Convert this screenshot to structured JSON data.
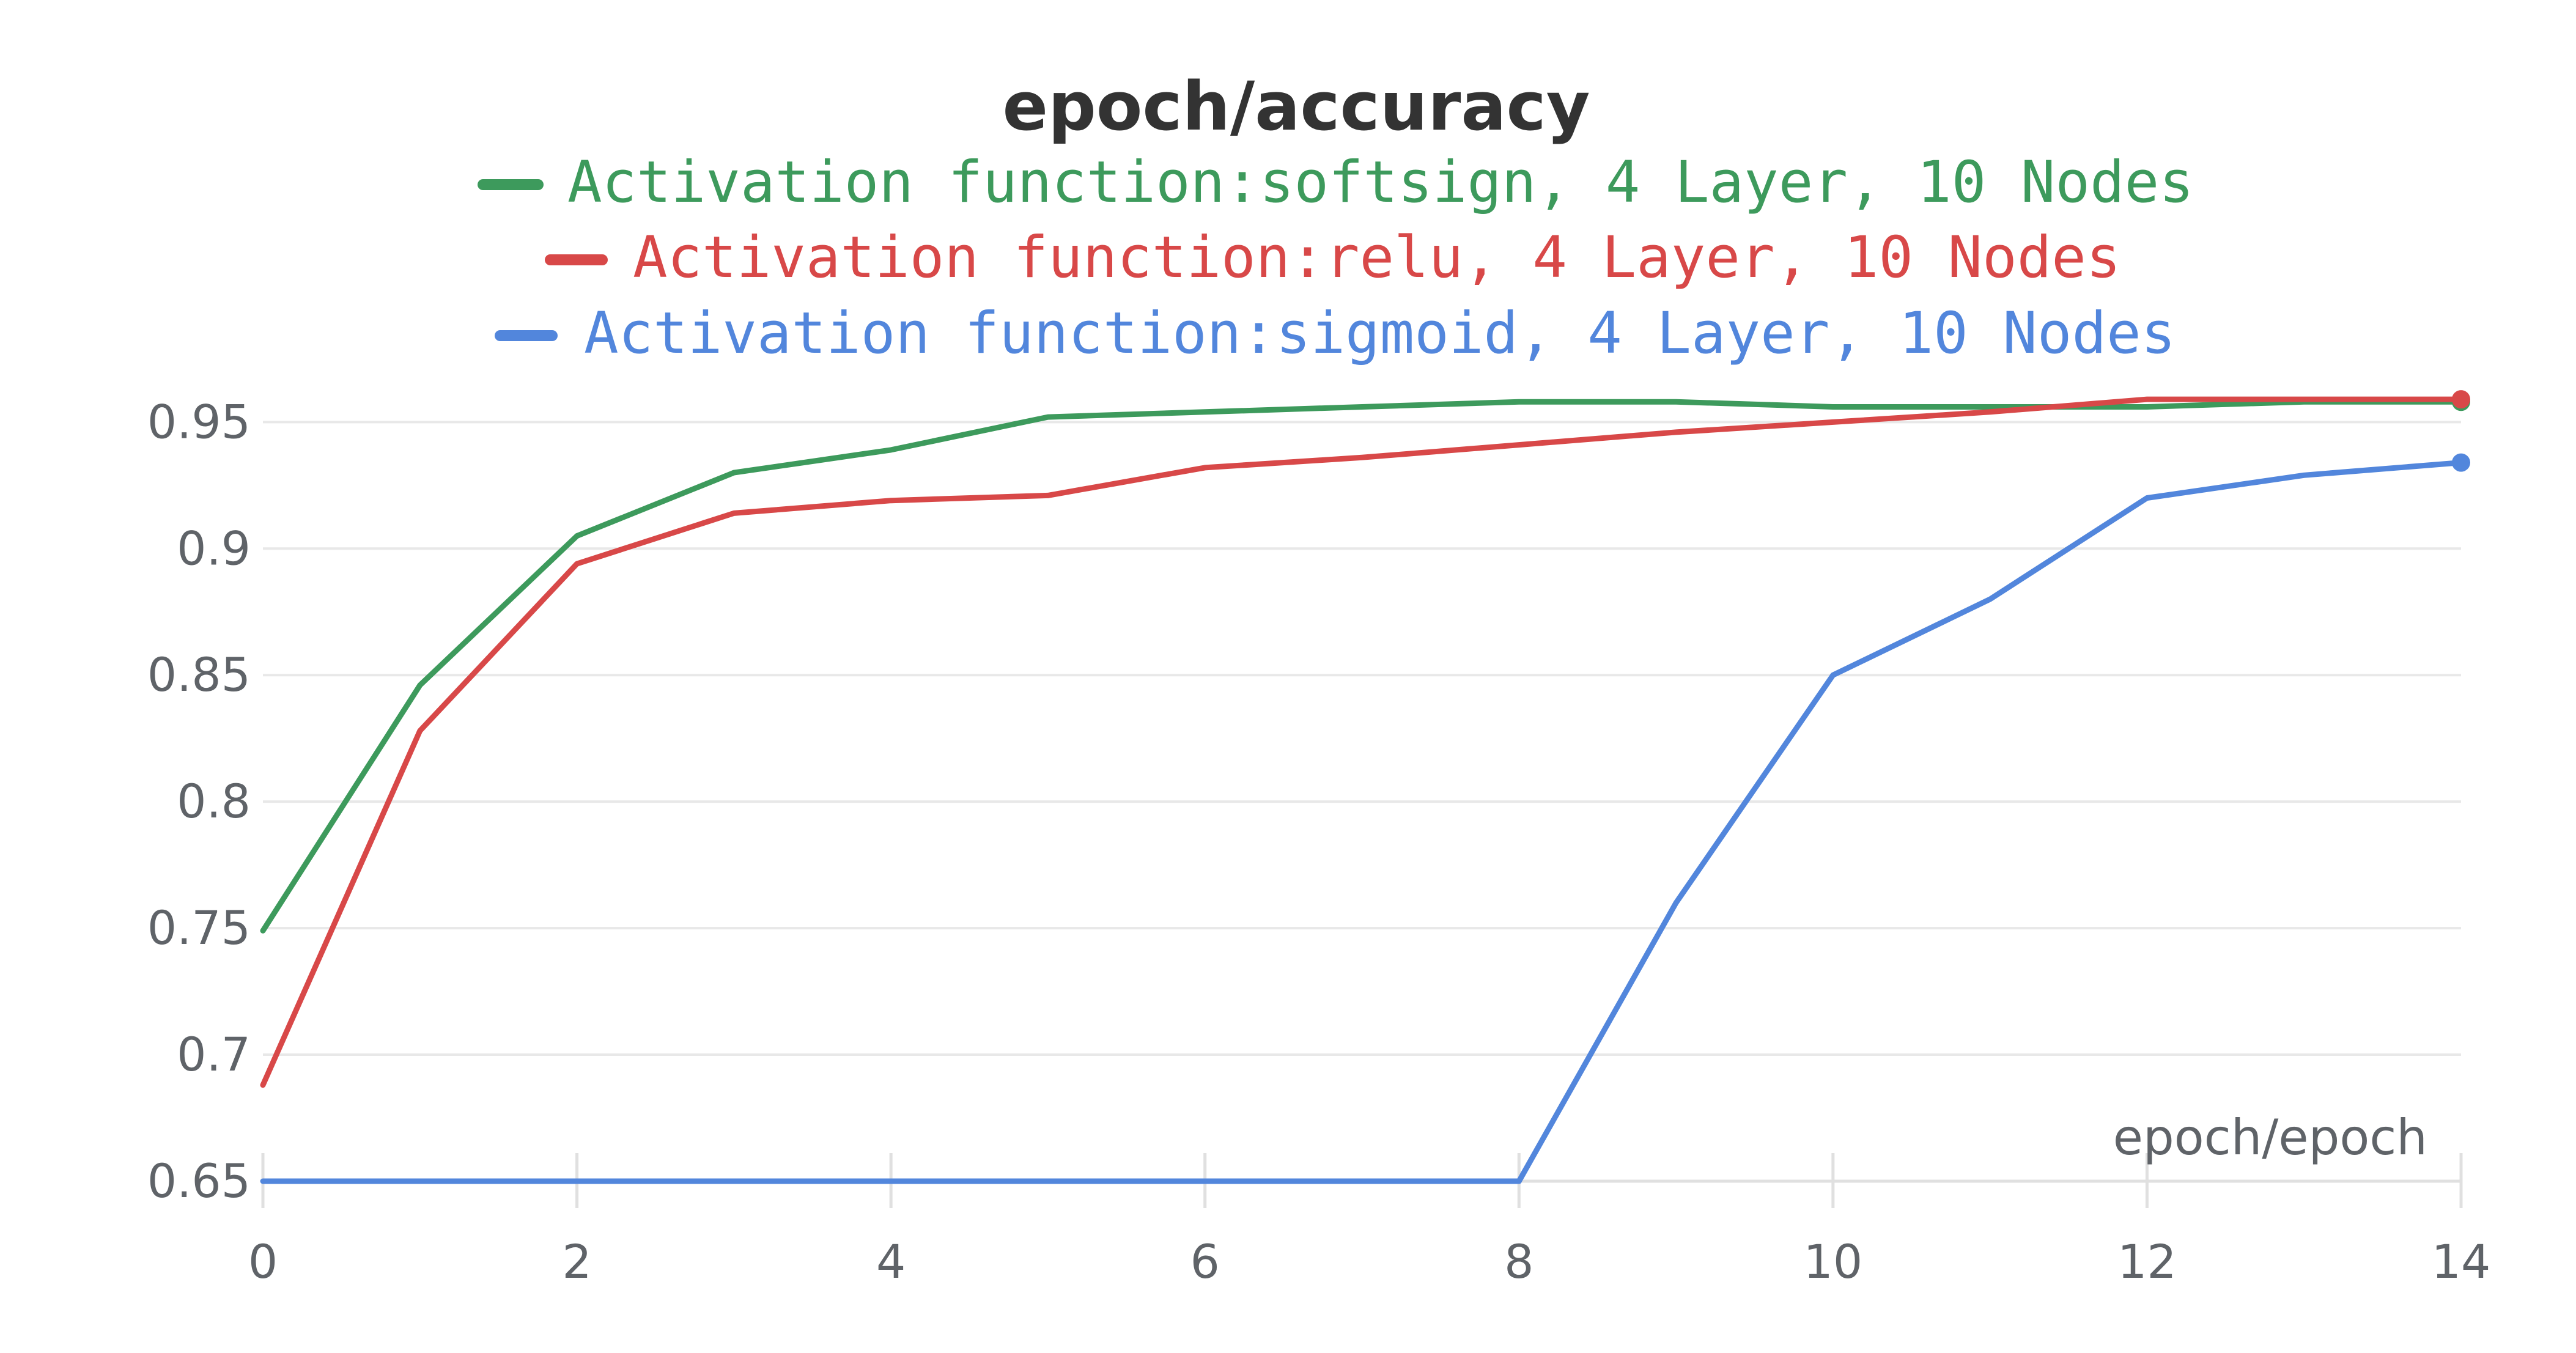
{
  "chart_data": {
    "type": "line",
    "title": "epoch/accuracy",
    "xlabel": "epoch/epoch",
    "ylabel": "",
    "xlim": [
      0,
      14
    ],
    "ylim": [
      0.65,
      0.967
    ],
    "x_ticks": [
      0,
      2,
      4,
      6,
      8,
      10,
      12,
      14
    ],
    "y_ticks": [
      {
        "value": 0.65,
        "label": "0.65"
      },
      {
        "value": 0.7,
        "label": "0.7"
      },
      {
        "value": 0.75,
        "label": "0.75"
      },
      {
        "value": 0.8,
        "label": "0.8"
      },
      {
        "value": 0.85,
        "label": "0.85"
      },
      {
        "value": 0.9,
        "label": "0.9"
      },
      {
        "value": 0.95,
        "label": "0.95"
      }
    ],
    "grid": true,
    "legend_position": "top",
    "x": [
      0,
      1,
      2,
      3,
      4,
      5,
      6,
      7,
      8,
      9,
      10,
      11,
      12,
      13,
      14
    ],
    "series": [
      {
        "name": "Activation function:softsign, 4 Layer, 10 Nodes",
        "color": "#3d9a5c",
        "values": [
          0.749,
          0.846,
          0.905,
          0.93,
          0.939,
          0.952,
          0.954,
          0.956,
          0.958,
          0.958,
          0.956,
          0.956,
          0.956,
          0.958,
          0.958
        ]
      },
      {
        "name": "Activation function:relu, 4 Layer, 10 Nodes",
        "color": "#d84848",
        "values": [
          0.688,
          0.828,
          0.894,
          0.914,
          0.919,
          0.921,
          0.932,
          0.936,
          0.941,
          0.946,
          0.95,
          0.954,
          0.959,
          0.959,
          0.959
        ]
      },
      {
        "name": "Activation function:sigmoid, 4 Layer, 10 Nodes",
        "color": "#5286dc",
        "values": [
          0.65,
          0.65,
          0.65,
          0.65,
          0.65,
          0.65,
          0.65,
          0.65,
          0.65,
          0.76,
          0.85,
          0.88,
          0.92,
          0.929,
          0.934
        ]
      }
    ]
  }
}
